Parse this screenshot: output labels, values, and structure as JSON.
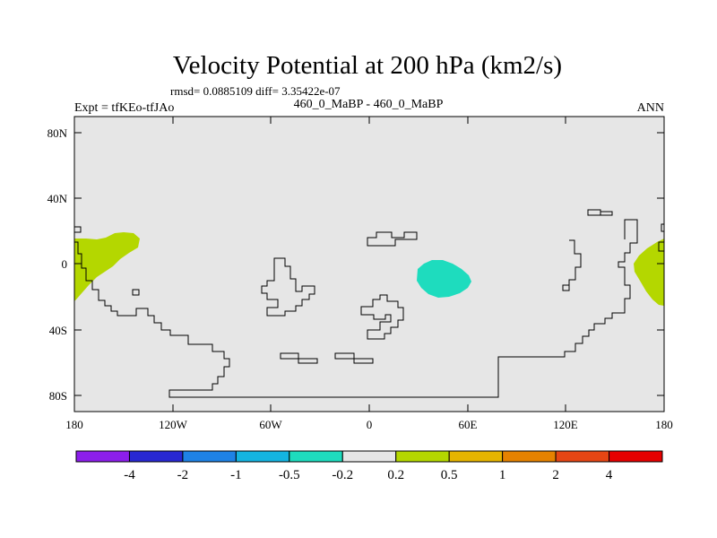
{
  "title": "Velocity Potential at 200 hPa (km2/s)",
  "stats": "rmsd= 0.0885109 diff= 3.35422e-07",
  "expt": "Expt = tfKEo-tfJAo",
  "subtitle": "460_0_MaBP - 460_0_MaBP",
  "season": "ANN",
  "colors": {
    "background": "#e6e6e6",
    "land_outline": "#000000",
    "positive_fill": "#b4d700",
    "negative_fill": "#1edcbe"
  },
  "map_data": {
    "lat_ticks": [
      "80N",
      "40N",
      "0",
      "40S",
      "80S"
    ],
    "lon_ticks": [
      "180",
      "120W",
      "60W",
      "0",
      "60E",
      "120E",
      "180"
    ],
    "projection": "cylindrical equidistant",
    "lon_range": [
      -180,
      180
    ],
    "lat_range": [
      -90,
      90
    ]
  },
  "colorbar": {
    "labels": [
      "-4",
      "-2",
      "-1",
      "-0.5",
      "-0.2",
      "0.2",
      "0.5",
      "1",
      "2",
      "4"
    ],
    "colors": [
      "#8c1eeb",
      "#2828d2",
      "#1e82e6",
      "#14b4e1",
      "#1edcbe",
      "#e6e6e6",
      "#b4d700",
      "#e6b400",
      "#e68200",
      "#e64614",
      "#e60000"
    ]
  }
}
